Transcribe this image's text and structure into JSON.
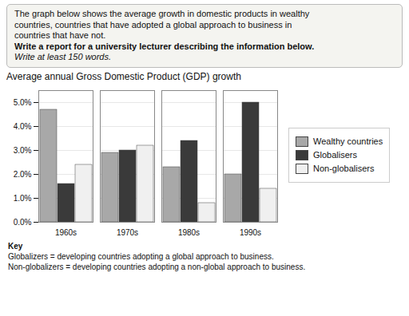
{
  "chart_data": {
    "type": "bar",
    "title": "Average annual Gross Domestic Product (GDP) growth",
    "categories": [
      "1960s",
      "1970s",
      "1980s",
      "1990s"
    ],
    "series": [
      {
        "name": "Wealthy countries",
        "color": "#a8a8a8",
        "values": [
          4.7,
          2.9,
          2.3,
          2.0
        ]
      },
      {
        "name": "Globalisers",
        "color": "#3a3a3a",
        "values": [
          1.6,
          3.0,
          3.4,
          5.0
        ]
      },
      {
        "name": "Non-globalisers",
        "color": "#f0f0f0",
        "values": [
          2.4,
          3.2,
          0.8,
          1.4
        ]
      }
    ],
    "ylim": [
      0,
      5.5
    ],
    "yticks": [
      {
        "value": 0.0,
        "label": "0.0%"
      },
      {
        "value": 1.0,
        "label": "1.0%"
      },
      {
        "value": 2.0,
        "label": "2.0%"
      },
      {
        "value": 3.0,
        "label": "3.0%"
      },
      {
        "value": 4.0,
        "label": "4.0%"
      },
      {
        "value": 5.0,
        "label": "5.0%"
      }
    ],
    "grid": true,
    "legend": "right",
    "annotations": [
      "The graph below shows the average growth in domestic products in wealthy",
      "countries, countries that have adopted a global approach to business in",
      "countries that have not.",
      "Write a report for a university lecturer describing the information below.",
      "Write at least 150 words.",
      "Key",
      "Globalizers = developing countries adopting a global approach to business.",
      "Non-globalizers = developing countries adopting a non-global approach to business."
    ]
  }
}
